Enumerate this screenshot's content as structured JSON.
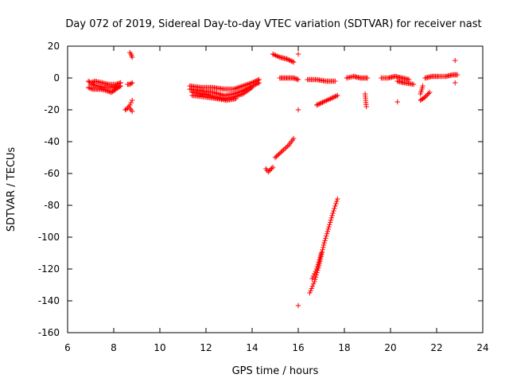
{
  "chart_data": {
    "type": "scatter",
    "title": "Day 072 of 2019, Sidereal Day-to-day VTEC variation (SDTVAR) for receiver nast",
    "xlabel": "GPS time / hours",
    "ylabel": "SDTVAR / TECUs",
    "xlim": [
      6,
      24
    ],
    "ylim": [
      -160,
      20
    ],
    "xticks": [
      6,
      8,
      10,
      12,
      14,
      16,
      18,
      20,
      22,
      24
    ],
    "yticks": [
      -160,
      -140,
      -120,
      -100,
      -80,
      -60,
      -40,
      -20,
      0,
      20
    ],
    "xtick_labels": [
      "6",
      "8",
      "10",
      "12",
      "14",
      "16",
      "18",
      "20",
      "22",
      "24"
    ],
    "ytick_labels": [
      "-160",
      "-140",
      "-120",
      "-100",
      "-80",
      "-60",
      "-40",
      "-20",
      "0",
      "20"
    ],
    "marker": "+",
    "color": "#ff0000",
    "segments": [
      {
        "x": [
          6.9,
          7.0,
          7.2,
          7.5,
          7.8,
          8.1,
          8.3
        ],
        "y": [
          -2,
          -3,
          -2,
          -3,
          -4,
          -4,
          -3
        ]
      },
      {
        "x": [
          6.9,
          7.1,
          7.4,
          7.7,
          7.9,
          8.1,
          8.3
        ],
        "y": [
          -6,
          -7,
          -7,
          -8,
          -9,
          -7,
          -5
        ]
      },
      {
        "x": [
          7.0,
          7.3,
          7.6,
          7.9,
          8.2
        ],
        "y": [
          -4,
          -5,
          -6,
          -6,
          -5
        ]
      },
      {
        "x": [
          8.6,
          8.7,
          8.8
        ],
        "y": [
          -4,
          -4,
          -3
        ]
      },
      {
        "x": [
          8.5,
          8.6,
          8.7,
          8.8
        ],
        "y": [
          -20,
          -19,
          -17,
          -14
        ]
      },
      {
        "x": [
          8.7,
          8.75,
          8.8
        ],
        "y": [
          -19,
          -20,
          -21
        ]
      },
      {
        "x": [
          8.7,
          8.75,
          8.8
        ],
        "y": [
          16,
          15,
          13
        ]
      },
      {
        "x": [
          11.3,
          11.8,
          12.3,
          12.8,
          13.2,
          13.6,
          14.0,
          14.3
        ],
        "y": [
          -5,
          -6,
          -6,
          -7,
          -7,
          -5,
          -3,
          -1
        ]
      },
      {
        "x": [
          11.3,
          11.8,
          12.3,
          12.8,
          13.2,
          13.6,
          14.0,
          14.3
        ],
        "y": [
          -7,
          -8,
          -9,
          -11,
          -10,
          -8,
          -5,
          -3
        ]
      },
      {
        "x": [
          11.4,
          11.9,
          12.4,
          12.8,
          13.2,
          13.6,
          14.0
        ],
        "y": [
          -9,
          -10,
          -12,
          -13,
          -12,
          -10,
          -6
        ]
      },
      {
        "x": [
          11.4,
          12.0,
          12.5,
          12.9,
          13.3
        ],
        "y": [
          -11,
          -12,
          -13,
          -14,
          -13
        ]
      },
      {
        "x": [
          14.9,
          15.2,
          15.5,
          15.8
        ],
        "y": [
          15,
          13,
          12,
          10
        ]
      },
      {
        "x": [
          15.2,
          15.5,
          15.8,
          16.0
        ],
        "y": [
          0,
          0,
          0,
          -1
        ]
      },
      {
        "x": [
          14.6,
          14.7,
          14.9
        ],
        "y": [
          -57,
          -59,
          -56
        ]
      },
      {
        "x": [
          15.0,
          15.3,
          15.6,
          15.8
        ],
        "y": [
          -50,
          -46,
          -42,
          -38
        ]
      },
      {
        "x": [
          16.0
        ],
        "y": [
          15
        ]
      },
      {
        "x": [
          16.0
        ],
        "y": [
          -20
        ]
      },
      {
        "x": [
          16.0
        ],
        "y": [
          -143
        ]
      },
      {
        "x": [
          16.4,
          16.8,
          17.2,
          17.6
        ],
        "y": [
          -1,
          -1,
          -2,
          -2
        ]
      },
      {
        "x": [
          16.8,
          17.1,
          17.4,
          17.7
        ],
        "y": [
          -17,
          -15,
          -13,
          -11
        ]
      },
      {
        "x": [
          16.5,
          16.7,
          16.9,
          17.1,
          17.3,
          17.5,
          17.7
        ],
        "y": [
          -135,
          -128,
          -118,
          -105,
          -95,
          -85,
          -76
        ]
      },
      {
        "x": [
          16.6,
          16.8,
          17.0
        ],
        "y": [
          -126,
          -120,
          -110
        ]
      },
      {
        "x": [
          18.1,
          18.4,
          18.7,
          19.0
        ],
        "y": [
          0,
          1,
          0,
          0
        ]
      },
      {
        "x": [
          18.9,
          18.95
        ],
        "y": [
          -10,
          -18
        ]
      },
      {
        "x": [
          19.6,
          19.9,
          20.2,
          20.5,
          20.8
        ],
        "y": [
          0,
          0,
          1,
          0,
          -1
        ]
      },
      {
        "x": [
          20.3,
          20.6,
          21.0
        ],
        "y": [
          -2,
          -3,
          -4
        ]
      },
      {
        "x": [
          20.3
        ],
        "y": [
          -15
        ]
      },
      {
        "x": [
          21.3,
          21.5,
          21.7
        ],
        "y": [
          -14,
          -12,
          -9
        ]
      },
      {
        "x": [
          21.3,
          21.4
        ],
        "y": [
          -10,
          -5
        ]
      },
      {
        "x": [
          21.5,
          21.8,
          22.1,
          22.4,
          22.7,
          22.9
        ],
        "y": [
          0,
          1,
          1,
          1,
          2,
          2
        ]
      },
      {
        "x": [
          22.8
        ],
        "y": [
          11
        ]
      },
      {
        "x": [
          22.8
        ],
        "y": [
          -3
        ]
      }
    ]
  }
}
